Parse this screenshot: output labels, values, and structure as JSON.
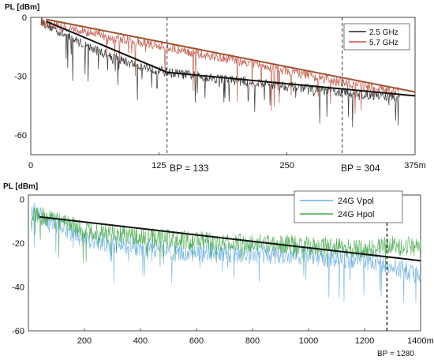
{
  "chart_data": [
    {
      "type": "line",
      "ylabel": "PL [dBm]",
      "xunit": "m",
      "xlim": [
        0,
        375
      ],
      "ylim": [
        -70,
        0
      ],
      "x_ticks": [
        {
          "value": 0,
          "label": "0"
        },
        {
          "value": 125,
          "label": "125"
        },
        {
          "value": 250,
          "label": "250"
        },
        {
          "value": 375,
          "label": "375m"
        }
      ],
      "y_ticks": [
        {
          "value": 0,
          "label": "0"
        },
        {
          "value": -30,
          "label": "-30"
        },
        {
          "value": -60,
          "label": "-60"
        }
      ],
      "legend_position": "top-right",
      "series": [
        {
          "name": "2.5 GHz",
          "color": "#222222",
          "x": [
            10,
            30,
            60,
            100,
            133,
            180,
            250,
            300,
            360
          ],
          "values": [
            -2,
            -8,
            -16,
            -24,
            -28,
            -31,
            -35,
            -38,
            -41
          ]
        },
        {
          "name": "5.7 GHz",
          "color": "#c05040",
          "x": [
            10,
            50,
            100,
            150,
            200,
            250,
            300,
            360
          ],
          "values": [
            -2,
            -7,
            -12,
            -17,
            -22,
            -27,
            -33,
            -38
          ]
        }
      ],
      "fit_lines": [
        {
          "color": "#111111",
          "x": [
            15,
            133,
            375
          ],
          "values": [
            -2,
            -28,
            -40
          ]
        },
        {
          "color": "#a0522d",
          "x": [
            15,
            375
          ],
          "values": [
            -1,
            -38
          ]
        }
      ],
      "breakpoint": {
        "x": 133,
        "label": "BP = 133"
      },
      "marker": {
        "x": 304,
        "label": "BP = 304"
      }
    },
    {
      "type": "line",
      "ylabel": "PL [dBm]",
      "xunit": "m",
      "xlim": [
        0,
        1400
      ],
      "ylim": [
        -60,
        2
      ],
      "x_ticks": [
        {
          "value": 200,
          "label": "200"
        },
        {
          "value": 400,
          "label": "400"
        },
        {
          "value": 600,
          "label": "600"
        },
        {
          "value": 800,
          "label": "800"
        },
        {
          "value": 1000,
          "label": "1000"
        },
        {
          "value": 1200,
          "label": "1200"
        },
        {
          "value": 1400,
          "label": "1400m"
        }
      ],
      "y_ticks": [
        {
          "value": 0,
          "label": "0"
        },
        {
          "value": -20,
          "label": "-20"
        },
        {
          "value": -40,
          "label": "-40"
        },
        {
          "value": -60,
          "label": "-60"
        }
      ],
      "legend_position": "top-right",
      "series": [
        {
          "name": "24G Vpol",
          "color": "#6aafe0",
          "x": [
            10,
            200,
            400,
            600,
            800,
            1000,
            1200,
            1300,
            1400
          ],
          "values": [
            -5,
            -18,
            -22,
            -24,
            -25,
            -26,
            -28,
            -30,
            -36
          ]
        },
        {
          "name": "24G Hpol",
          "color": "#44a84a",
          "x": [
            10,
            200,
            400,
            600,
            800,
            1000,
            1200,
            1300,
            1400
          ],
          "values": [
            -6,
            -14,
            -17,
            -19,
            -20,
            -21,
            -23,
            -21,
            -22
          ]
        }
      ],
      "fit_lines": [
        {
          "color": "#111111",
          "x": [
            40,
            1400
          ],
          "values": [
            -8,
            -28
          ]
        }
      ],
      "breakpoint": {
        "x": 1280,
        "label": "BP = 1280"
      }
    }
  ]
}
